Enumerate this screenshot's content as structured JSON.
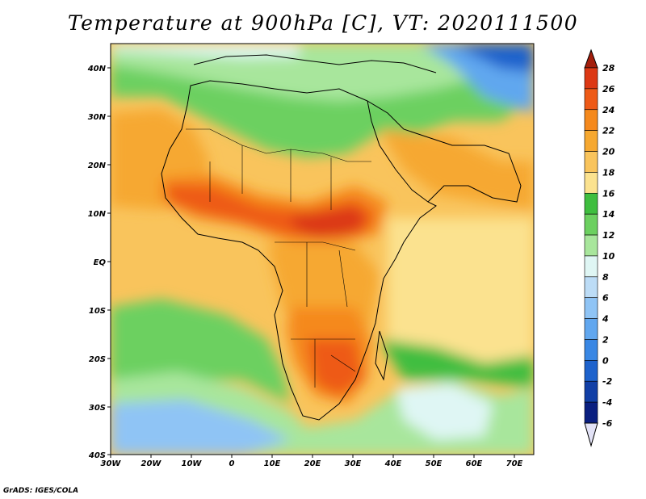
{
  "title": "Temperature at 900hPa [C], VT: 2020111500",
  "credit": "GrADS: IGES/COLA",
  "map": {
    "region": "Africa",
    "lat_range": [
      -40,
      45
    ],
    "lon_range": [
      -30,
      75
    ],
    "lat_labels": [
      "40N",
      "30N",
      "20N",
      "10N",
      "EQ",
      "10S",
      "20S",
      "30S",
      "40S"
    ],
    "lon_labels": [
      "30W",
      "20W",
      "10W",
      "0",
      "10E",
      "20E",
      "30E",
      "40E",
      "50E",
      "60E",
      "70E"
    ]
  },
  "colorbar": {
    "labels": [
      "28",
      "26",
      "24",
      "22",
      "20",
      "18",
      "16",
      "14",
      "12",
      "10",
      "8",
      "6",
      "4",
      "2",
      "0",
      "-2",
      "-4",
      "-6"
    ],
    "colors": [
      "#a31e0c",
      "#dc3814",
      "#ee5a17",
      "#f5891c",
      "#f6a830",
      "#f9c45c",
      "#fbe28f",
      "#3fbe3f",
      "#6cd060",
      "#a8e69c",
      "#dff6f4",
      "#bcdcf6",
      "#8fc4f5",
      "#61a7ef",
      "#3987e4",
      "#1d62cc",
      "#113fa6",
      "#0a1f80",
      "#e2e2f6"
    ]
  }
}
